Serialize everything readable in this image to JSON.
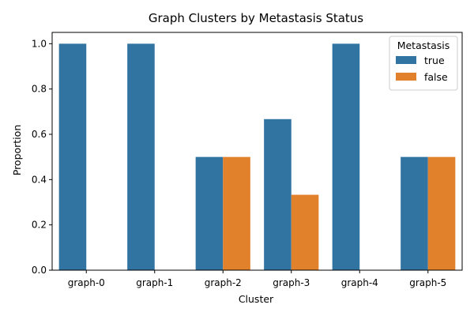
{
  "chart_data": {
    "type": "bar",
    "title": "Graph Clusters by Metastasis Status",
    "xlabel": "Cluster",
    "ylabel": "Proportion",
    "categories": [
      "graph-0",
      "graph-1",
      "graph-2",
      "graph-3",
      "graph-4",
      "graph-5"
    ],
    "series": [
      {
        "name": "true",
        "color": "#3274a1",
        "values": [
          1.0,
          1.0,
          0.5,
          0.667,
          1.0,
          0.5
        ]
      },
      {
        "name": "false",
        "color": "#e1812c",
        "values": [
          0.0,
          0.0,
          0.5,
          0.333,
          0.0,
          0.5
        ]
      }
    ],
    "ylim": [
      0,
      1.05
    ],
    "yticks": [
      "0.0",
      "0.2",
      "0.4",
      "0.6",
      "0.8",
      "1.0"
    ],
    "legend": {
      "title": "Metastasis",
      "position": "top-right"
    },
    "grid": false
  }
}
